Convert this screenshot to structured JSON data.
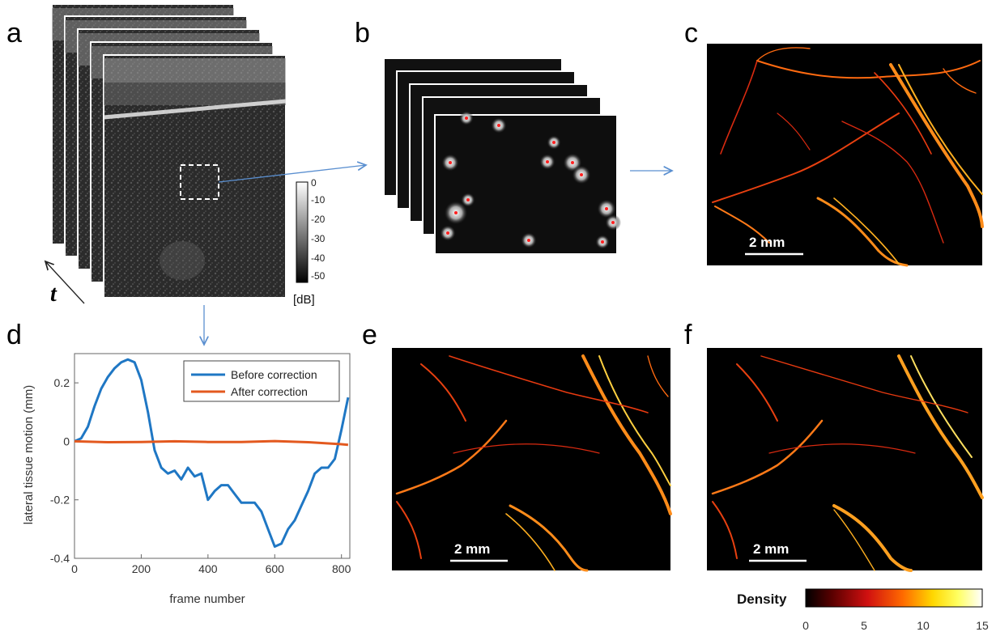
{
  "panels": {
    "a": "a",
    "b": "b",
    "c": "c",
    "d": "d",
    "e": "e",
    "f": "f"
  },
  "panel_a": {
    "time_label": "t",
    "colorbar_ticks": [
      "0",
      "-10",
      "-20",
      "-30",
      "-40",
      "-50"
    ],
    "colorbar_unit": "[dB]"
  },
  "scale_bars": {
    "c": "2 mm",
    "e": "2 mm",
    "f": "2 mm"
  },
  "density_colorbar": {
    "label": "Density",
    "ticks": [
      "0",
      "5",
      "10",
      "15"
    ],
    "colors": [
      "#000000",
      "#5a0000",
      "#d01010",
      "#ff6a00",
      "#ffd700",
      "#ffff60",
      "#ffffff"
    ]
  },
  "colors": {
    "before_correction": "#1f77c4",
    "after_correction": "#e3591f",
    "arrow": "#5a8fd0",
    "vessel": "#ff6a10"
  },
  "chart_data": {
    "type": "line",
    "xlabel": "frame number",
    "ylabel": "lateral tissue motion (mm)",
    "xlim": [
      0,
      825
    ],
    "ylim": [
      -0.4,
      0.3
    ],
    "xticks": [
      0,
      200,
      400,
      600,
      800
    ],
    "yticks": [
      -0.4,
      -0.2,
      0,
      0.2
    ],
    "xtick_labels": [
      "0",
      "200",
      "400",
      "600",
      "800"
    ],
    "ytick_labels": [
      "-0.4",
      "-0.2",
      "0",
      "0.2"
    ],
    "legend_position": "top-right",
    "series": [
      {
        "name": "Before correction",
        "x": [
          0,
          20,
          40,
          60,
          80,
          100,
          120,
          140,
          160,
          180,
          200,
          220,
          240,
          260,
          280,
          300,
          320,
          340,
          360,
          380,
          400,
          420,
          440,
          460,
          480,
          500,
          520,
          540,
          560,
          580,
          600,
          620,
          640,
          660,
          680,
          700,
          720,
          740,
          760,
          780,
          800,
          820
        ],
        "y": [
          0,
          0.01,
          0.05,
          0.12,
          0.18,
          0.22,
          0.25,
          0.27,
          0.28,
          0.27,
          0.21,
          0.1,
          -0.03,
          -0.09,
          -0.11,
          -0.1,
          -0.13,
          -0.09,
          -0.12,
          -0.11,
          -0.2,
          -0.17,
          -0.15,
          -0.15,
          -0.18,
          -0.21,
          -0.21,
          -0.21,
          -0.24,
          -0.3,
          -0.36,
          -0.35,
          -0.3,
          -0.27,
          -0.22,
          -0.17,
          -0.11,
          -0.09,
          -0.09,
          -0.06,
          0.04,
          0.15
        ]
      },
      {
        "name": "After correction",
        "x": [
          0,
          100,
          200,
          300,
          400,
          500,
          600,
          700,
          800,
          820
        ],
        "y": [
          0,
          -0.003,
          -0.002,
          0,
          -0.002,
          -0.002,
          0.001,
          -0.003,
          -0.01,
          -0.012
        ]
      }
    ]
  }
}
